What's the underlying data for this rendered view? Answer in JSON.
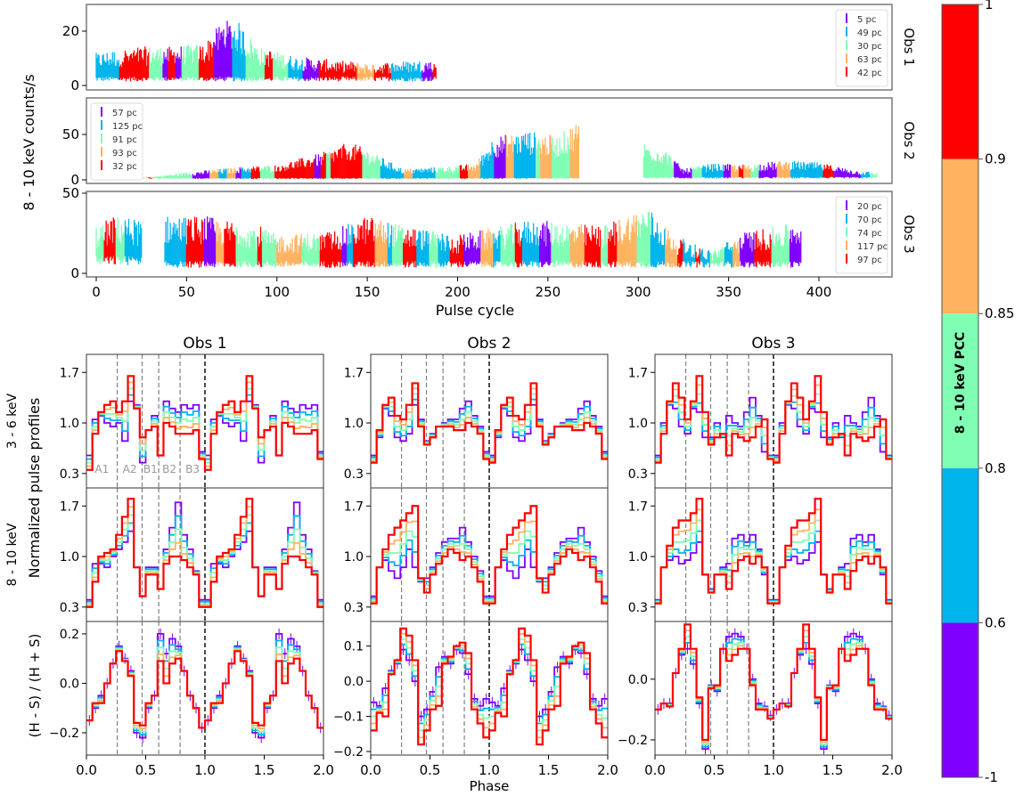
{
  "colors": {
    "bin1": "#8000ff",
    "bin2": "#00b4ec",
    "bin3": "#80ffb4",
    "bin4": "#ffb360",
    "bin5": "#ff0000",
    "axis": "#000000",
    "panel_border": "#808080",
    "region_line": "#808080",
    "phase_one_line": "#000000",
    "region_label": "#999999"
  },
  "chart_data": [
    {
      "id": "light-curves",
      "type": "scatter",
      "description": "8-10 keV light curves per pulse cycle, color-coded by PCC bin",
      "xlabel": "Pulse cycle",
      "ylabel": "8 - 10 keV counts/s",
      "xlim": [
        -5,
        440
      ],
      "xticks": [
        0,
        50,
        100,
        150,
        200,
        250,
        300,
        350,
        400
      ],
      "panels": [
        {
          "label": "Obs 1",
          "ylim": [
            -1,
            28
          ],
          "yticks": [
            0,
            20
          ],
          "legend": {
            "placement": "top-right",
            "entries": [
              "5 pc",
              "49 pc",
              "30 pc",
              "63 pc",
              "42 pc"
            ]
          },
          "segments": [
            {
              "x_start": 0,
              "x_end": 188,
              "baseline": 3,
              "envelope": [
                [
                  0,
                  10
                ],
                [
                  20,
                  12
                ],
                [
                  40,
                  12
                ],
                [
                  60,
                  13
                ],
                [
                  70,
                  20
                ],
                [
                  78,
                  20
                ],
                [
                  90,
                  12
                ],
                [
                  110,
                  9
                ],
                [
                  130,
                  8
                ],
                [
                  150,
                  7
                ],
                [
                  188,
                  8
                ]
              ]
            }
          ]
        },
        {
          "label": "Obs 2",
          "ylim": [
            -2,
            82
          ],
          "yticks": [
            0,
            50
          ],
          "legend": {
            "placement": "top-left",
            "entries": [
              "57 pc",
              "125 pc",
              "91 pc",
              "93 pc",
              "32 pc"
            ]
          },
          "segments": [
            {
              "x_start": 0,
              "x_end": 267,
              "baseline": 2,
              "envelope": [
                [
                  0,
                  1
                ],
                [
                  30,
                  3
                ],
                [
                  50,
                  7
                ],
                [
                  80,
                  12
                ],
                [
                  100,
                  14
                ],
                [
                  125,
                  25
                ],
                [
                  140,
                  35
                ],
                [
                  150,
                  28
                ],
                [
                  170,
                  10
                ],
                [
                  190,
                  12
                ],
                [
                  210,
                  15
                ],
                [
                  220,
                  40
                ],
                [
                  240,
                  45
                ],
                [
                  255,
                  40
                ],
                [
                  267,
                  55
                ]
              ]
            },
            {
              "x_start": 303,
              "x_end": 432,
              "baseline": 3,
              "envelope": [
                [
                  303,
                  35
                ],
                [
                  315,
                  28
                ],
                [
                  325,
                  10
                ],
                [
                  340,
                  15
                ],
                [
                  360,
                  14
                ],
                [
                  380,
                  18
                ],
                [
                  400,
                  16
                ],
                [
                  420,
                  9
                ],
                [
                  432,
                  7
                ]
              ]
            }
          ]
        },
        {
          "label": "Obs 3",
          "ylim": [
            -2,
            50
          ],
          "yticks": [
            0,
            50
          ],
          "legend": {
            "placement": "top-right",
            "entries": [
              "20 pc",
              "70 pc",
              "74 pc",
              "117 pc",
              "97 pc"
            ]
          },
          "segments": [
            {
              "x_start": 0,
              "x_end": 25,
              "baseline": 10,
              "envelope": [
                [
                  0,
                  25
                ],
                [
                  10,
                  30
                ],
                [
                  25,
                  28
                ]
              ]
            },
            {
              "x_start": 38,
              "x_end": 390,
              "baseline": 7,
              "envelope": [
                [
                  38,
                  30
                ],
                [
                  60,
                  30
                ],
                [
                  90,
                  25
                ],
                [
                  100,
                  20
                ],
                [
                  130,
                  22
                ],
                [
                  150,
                  30
                ],
                [
                  170,
                  25
                ],
                [
                  200,
                  20
                ],
                [
                  240,
                  28
                ],
                [
                  280,
                  25
                ],
                [
                  305,
                  35
                ],
                [
                  320,
                  20
                ],
                [
                  340,
                  12
                ],
                [
                  360,
                  22
                ],
                [
                  380,
                  25
                ],
                [
                  390,
                  28
                ]
              ]
            }
          ]
        }
      ]
    },
    {
      "id": "pulse-profiles",
      "type": "line",
      "description": "Normalized pulse profiles (step plots) by PCC bin, two phase cycles shown",
      "xlabel": "Phase",
      "xlim": [
        0,
        2
      ],
      "xticks": [
        0.0,
        0.5,
        1.0,
        1.5,
        2.0
      ],
      "ylabel": "Normalized pulse profiles",
      "row_labels": [
        "3 - 6 keV",
        "8 - 10 keV",
        "(H - S) / (H + S)"
      ],
      "column_titles": [
        "Obs 1",
        "Obs 2",
        "Obs 3"
      ],
      "region_labels": [
        "A1",
        "A2",
        "B1",
        "B2",
        "B3"
      ],
      "region_boundaries": [
        0.26,
        0.47,
        0.61,
        0.79
      ],
      "phase_one_marker": 1.0,
      "rows": [
        {
          "ylim": [
            0.1,
            1.95
          ],
          "yticks": [
            0.3,
            1.0,
            1.7
          ]
        },
        {
          "ylim": [
            0.1,
            1.95
          ],
          "yticks": [
            0.3,
            1.0,
            1.7
          ]
        },
        {
          "ylim_by_obs": [
            [
              -0.29,
              0.25
            ],
            [
              -0.21,
              0.17
            ],
            [
              -0.25,
              0.19
            ]
          ],
          "yticks_by_obs": [
            [
              -0.2,
              0.0,
              0.2
            ],
            [
              -0.2,
              -0.1,
              0.0,
              0.1
            ],
            [
              -0.2,
              0.0
            ]
          ]
        }
      ],
      "series_note": "Values per 20 phase bins over one cycle (repeated for phase 1-2); bins: [bin1 purple, bin2 blue, bin3 green, bin4 orange, bin5 red]",
      "profiles": {
        "obs1": {
          "soft": {
            "bin1": [
              0.55,
              1.05,
              1.1,
              1.0,
              0.95,
              1.0,
              0.75,
              1.3,
              1.25,
              0.45,
              0.9,
              1.1,
              0.55,
              1.3,
              1.2,
              1.15,
              1.25,
              1.2,
              1.25,
              0.6
            ],
            "bin5": [
              0.35,
              0.85,
              1.15,
              1.25,
              1.3,
              1.15,
              1.3,
              1.65,
              1.2,
              0.8,
              0.9,
              0.95,
              0.55,
              1.0,
              0.95,
              0.85,
              0.85,
              0.85,
              0.9,
              0.5
            ]
          },
          "hard": {
            "bin1": [
              0.4,
              0.9,
              0.9,
              0.85,
              1.0,
              1.1,
              1.2,
              1.35,
              0.85,
              0.45,
              0.85,
              0.85,
              0.55,
              1.1,
              1.4,
              1.75,
              1.3,
              1.1,
              0.8,
              0.4
            ],
            "bin5": [
              0.3,
              0.65,
              1.0,
              1.05,
              1.1,
              1.3,
              1.55,
              1.8,
              0.85,
              0.45,
              0.75,
              0.75,
              0.55,
              0.9,
              1.0,
              1.0,
              0.95,
              0.85,
              0.75,
              0.3
            ]
          },
          "hr": {
            "bin1": [
              -0.15,
              -0.1,
              -0.05,
              0.0,
              0.08,
              0.15,
              0.1,
              0.05,
              -0.2,
              -0.22,
              -0.1,
              -0.05,
              0.2,
              0.12,
              0.18,
              0.15,
              0.05,
              -0.05,
              -0.1,
              -0.18
            ],
            "bin5": [
              -0.15,
              -0.08,
              -0.08,
              0.0,
              0.08,
              0.13,
              0.09,
              0.03,
              -0.16,
              -0.17,
              -0.08,
              -0.05,
              0.09,
              0.0,
              0.08,
              0.1,
              0.05,
              -0.05,
              -0.1,
              -0.18
            ]
          }
        },
        "obs2": {
          "soft": {
            "bin1": [
              0.55,
              0.8,
              1.2,
              1.1,
              0.8,
              0.75,
              0.85,
              1.25,
              1.05,
              0.75,
              0.85,
              0.95,
              1.0,
              1.05,
              1.05,
              1.2,
              1.3,
              1.1,
              0.95,
              0.6
            ],
            "bin5": [
              0.45,
              0.9,
              1.25,
              1.35,
              1.1,
              1.05,
              1.25,
              1.55,
              0.95,
              0.7,
              0.8,
              0.95,
              0.95,
              0.95,
              0.9,
              0.9,
              1.0,
              0.95,
              0.85,
              0.5
            ]
          },
          "hard": {
            "bin1": [
              0.45,
              0.85,
              0.95,
              0.8,
              0.7,
              0.85,
              1.1,
              0.85,
              0.65,
              0.7,
              0.85,
              1.05,
              1.2,
              1.25,
              1.25,
              1.4,
              1.2,
              1.0,
              0.8,
              0.45
            ],
            "bin5": [
              0.35,
              0.85,
              1.1,
              1.3,
              1.4,
              1.5,
              1.6,
              1.7,
              0.7,
              0.5,
              0.75,
              0.9,
              1.0,
              1.1,
              1.05,
              0.95,
              1.0,
              0.85,
              0.65,
              0.35
            ]
          },
          "hr": {
            "bin1": [
              -0.06,
              -0.07,
              -0.02,
              0.03,
              0.05,
              0.09,
              0.06,
              0.0,
              -0.1,
              -0.08,
              -0.03,
              0.04,
              0.07,
              0.05,
              0.09,
              0.08,
              0.02,
              -0.05,
              -0.07,
              -0.05
            ],
            "bin5": [
              -0.14,
              -0.09,
              -0.1,
              0.02,
              0.06,
              0.15,
              0.13,
              0.06,
              -0.18,
              -0.14,
              -0.08,
              -0.07,
              0.05,
              0.07,
              0.1,
              0.11,
              0.08,
              -0.08,
              -0.12,
              -0.16
            ]
          }
        },
        "obs3": {
          "soft": {
            "bin1": [
              0.55,
              1.0,
              1.25,
              1.2,
              0.95,
              0.85,
              1.2,
              1.15,
              0.8,
              0.8,
              1.0,
              0.8,
              1.1,
              1.0,
              0.95,
              1.15,
              1.35,
              1.1,
              0.6,
              0.55
            ],
            "bin5": [
              0.45,
              0.85,
              1.3,
              1.55,
              1.35,
              1.05,
              1.3,
              1.65,
              1.15,
              0.7,
              0.8,
              0.85,
              0.55,
              0.85,
              0.8,
              0.75,
              0.8,
              0.95,
              1.05,
              0.5
            ]
          },
          "hard": {
            "bin1": [
              0.4,
              0.85,
              0.95,
              1.0,
              0.9,
              0.95,
              1.05,
              1.2,
              0.75,
              0.55,
              0.75,
              0.85,
              0.9,
              1.25,
              1.3,
              1.2,
              1.3,
              1.1,
              0.75,
              0.4
            ],
            "bin5": [
              0.35,
              0.85,
              1.15,
              1.4,
              1.5,
              1.5,
              1.6,
              1.8,
              0.75,
              0.5,
              0.75,
              0.75,
              0.55,
              0.8,
              0.95,
              1.0,
              0.9,
              1.0,
              0.85,
              0.35
            ]
          },
          "hr": {
            "bin1": [
              -0.1,
              -0.08,
              -0.08,
              0.02,
              0.08,
              0.1,
              0.05,
              -0.08,
              -0.23,
              -0.02,
              -0.04,
              0.1,
              0.14,
              0.15,
              0.14,
              0.1,
              0.0,
              -0.08,
              -0.09,
              -0.12
            ],
            "bin5": [
              -0.1,
              -0.08,
              -0.09,
              0.02,
              0.1,
              0.18,
              0.1,
              -0.06,
              -0.2,
              -0.03,
              -0.02,
              0.1,
              0.06,
              0.08,
              0.1,
              0.1,
              -0.02,
              -0.1,
              -0.1,
              -0.13
            ]
          }
        }
      }
    },
    {
      "id": "colorbar",
      "type": "heatmap",
      "label": "8 - 10 keV PCC",
      "ticks": [
        "1",
        "0.9",
        "0.85",
        "0.8",
        "0.6",
        "-1"
      ],
      "bins": [
        {
          "from": -1,
          "to": 0.6,
          "color_key": "bin1"
        },
        {
          "from": 0.6,
          "to": 0.8,
          "color_key": "bin2"
        },
        {
          "from": 0.8,
          "to": 0.85,
          "color_key": "bin3"
        },
        {
          "from": 0.85,
          "to": 0.9,
          "color_key": "bin4"
        },
        {
          "from": 0.9,
          "to": 1,
          "color_key": "bin5"
        }
      ]
    }
  ]
}
